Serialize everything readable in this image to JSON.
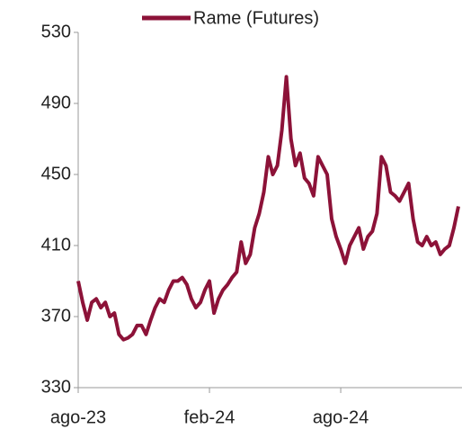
{
  "chart_data": {
    "type": "line",
    "categories": [
      "ago-23",
      null,
      null,
      null,
      null,
      null,
      null,
      null,
      null,
      null,
      null,
      null,
      null,
      null,
      null,
      null,
      null,
      null,
      null,
      null,
      null,
      null,
      null,
      null,
      null,
      null,
      null,
      null,
      null,
      "feb-24",
      null,
      null,
      null,
      null,
      null,
      null,
      null,
      null,
      null,
      null,
      null,
      null,
      null,
      null,
      null,
      null,
      null,
      null,
      null,
      null,
      null,
      null,
      null,
      null,
      null,
      null,
      null,
      null,
      "ago-24",
      null,
      null,
      null,
      null,
      null,
      null,
      null,
      null,
      null,
      null,
      null,
      null,
      null,
      null,
      null,
      null,
      null,
      null,
      null,
      null,
      null,
      null,
      null,
      null,
      null,
      null
    ],
    "series": [
      {
        "name": "Rame (Futures)",
        "color": "#8c1238",
        "values": [
          390,
          378,
          368,
          378,
          380,
          375,
          378,
          370,
          372,
          360,
          357,
          358,
          360,
          365,
          365,
          360,
          368,
          375,
          380,
          378,
          385,
          390,
          390,
          392,
          388,
          380,
          375,
          378,
          385,
          390,
          372,
          380,
          385,
          388,
          392,
          395,
          412,
          400,
          405,
          420,
          428,
          440,
          460,
          450,
          455,
          475,
          505,
          470,
          455,
          462,
          448,
          445,
          438,
          460,
          455,
          450,
          425,
          415,
          408,
          400,
          410,
          415,
          420,
          408,
          415,
          418,
          428,
          460,
          455,
          440,
          438,
          435,
          440,
          445,
          425,
          412,
          410,
          415,
          410,
          412,
          405,
          408,
          410,
          420,
          432
        ]
      }
    ],
    "ylim": [
      330,
      530
    ],
    "yticks": [
      330,
      370,
      410,
      450,
      490,
      530
    ],
    "legend": "top"
  }
}
